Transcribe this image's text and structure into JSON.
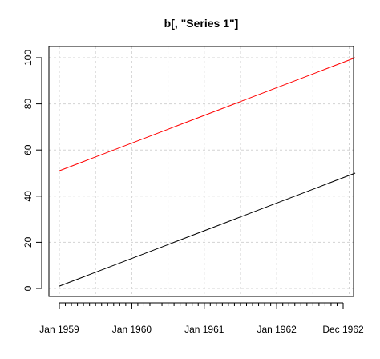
{
  "chart_data": {
    "type": "line",
    "title": "b[, \"Series 1\"]",
    "xlabel": "",
    "ylabel": "",
    "grid": true,
    "legend": "none",
    "x_range": [
      "1959-01",
      "1963-02"
    ],
    "ylim": [
      -3,
      104
    ],
    "x_ticks": [
      {
        "x": "1959-01",
        "label": "Jan 1959"
      },
      {
        "x": "1960-01",
        "label": "Jan 1960"
      },
      {
        "x": "1961-01",
        "label": "Jan 1961"
      },
      {
        "x": "1962-01",
        "label": "Jan 1962"
      },
      {
        "x": "1962-12",
        "label": "Dec 1962"
      }
    ],
    "y_ticks": [
      0,
      20,
      40,
      60,
      80,
      100
    ],
    "series": [
      {
        "color": "#000000",
        "x_start": "1959-01",
        "x_end": "1963-02",
        "y_start": 1,
        "y_end": 50,
        "n_points": 50
      },
      {
        "color": "#ff0000",
        "x_start": "1959-01",
        "x_end": "1963-02",
        "y_start": 51,
        "y_end": 100,
        "n_points": 50
      }
    ]
  }
}
